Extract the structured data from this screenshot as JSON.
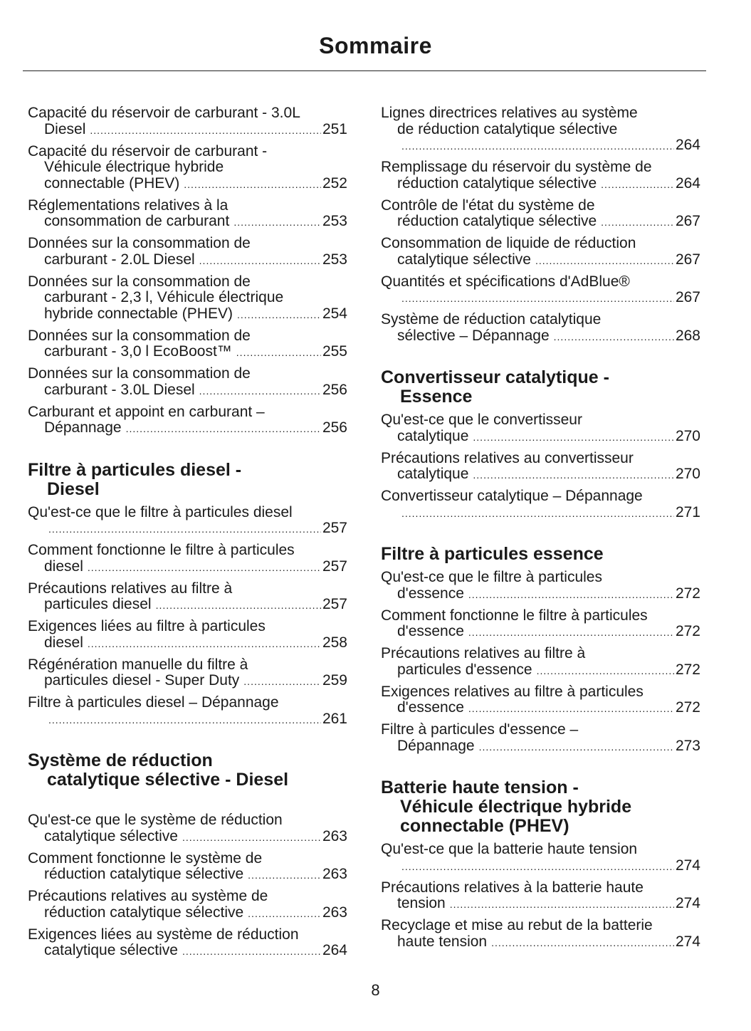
{
  "title": "Sommaire",
  "page_number": "8",
  "columns": [
    [
      {
        "type": "entry",
        "lines": [
          "Capacité du réservoir de carburant - 3.0L",
          "Diesel"
        ],
        "page": "251"
      },
      {
        "type": "entry",
        "lines": [
          "Capacité du réservoir de carburant -",
          "Véhicule électrique hybride",
          "connectable (PHEV)"
        ],
        "page": "252"
      },
      {
        "type": "entry",
        "lines": [
          "Réglementations relatives à la",
          "consommation de carburant"
        ],
        "page": "253"
      },
      {
        "type": "entry",
        "lines": [
          "Données sur la consommation de",
          "carburant - 2.0L Diesel"
        ],
        "page": "253"
      },
      {
        "type": "entry",
        "lines": [
          "Données sur la consommation de",
          "carburant - 2,3 l, Véhicule électrique",
          "hybride connectable (PHEV)"
        ],
        "page": "254"
      },
      {
        "type": "entry",
        "lines": [
          "Données sur la consommation de",
          "carburant - 3,0 l EcoBoost™"
        ],
        "page": "255"
      },
      {
        "type": "entry",
        "lines": [
          "Données sur la consommation de",
          "carburant - 3.0L Diesel"
        ],
        "page": "256"
      },
      {
        "type": "entry",
        "lines": [
          "Carburant et appoint en carburant –",
          "Dépannage"
        ],
        "page": "256"
      },
      {
        "type": "heading",
        "lines": [
          "Filtre à particules diesel -",
          "Diesel"
        ]
      },
      {
        "type": "entry",
        "lines": [
          "Qu'est-ce que le filtre à particules diesel",
          ""
        ],
        "page": "257"
      },
      {
        "type": "entry",
        "lines": [
          "Comment fonctionne le filtre à particules",
          "diesel"
        ],
        "page": "257"
      },
      {
        "type": "entry",
        "lines": [
          "Précautions relatives au filtre à",
          "particules diesel"
        ],
        "page": "257"
      },
      {
        "type": "entry",
        "lines": [
          "Exigences liées au filtre à particules",
          "diesel"
        ],
        "page": "258"
      },
      {
        "type": "entry",
        "lines": [
          "Régénération manuelle du filtre à",
          "particules diesel - Super Duty"
        ],
        "page": "259"
      },
      {
        "type": "entry",
        "lines": [
          "Filtre à particules diesel – Dépannage",
          ""
        ],
        "page": "261"
      },
      {
        "type": "heading",
        "big_after": true,
        "lines": [
          "Système de réduction",
          "catalytique sélective - Diesel"
        ]
      },
      {
        "type": "entry",
        "lines": [
          "Qu'est-ce que le système de réduction",
          "catalytique sélective"
        ],
        "page": "263"
      },
      {
        "type": "entry",
        "lines": [
          "Comment fonctionne le système de",
          "réduction catalytique sélective"
        ],
        "page": "263"
      },
      {
        "type": "entry",
        "lines": [
          "Précautions relatives au système de",
          "réduction catalytique sélective"
        ],
        "page": "263"
      },
      {
        "type": "entry",
        "lines": [
          "Exigences liées au système de réduction",
          "catalytique sélective"
        ],
        "page": "264"
      }
    ],
    [
      {
        "type": "entry",
        "lines": [
          "Lignes directrices relatives au système",
          "de réduction catalytique sélective",
          ""
        ],
        "page": "264"
      },
      {
        "type": "entry",
        "lines": [
          "Remplissage du réservoir du système de",
          "réduction catalytique sélective"
        ],
        "page": "264"
      },
      {
        "type": "entry",
        "lines": [
          "Contrôle de l'état du système de",
          "réduction catalytique sélective"
        ],
        "page": "267"
      },
      {
        "type": "entry",
        "lines": [
          "Consommation de liquide de réduction",
          "catalytique sélective"
        ],
        "page": "267"
      },
      {
        "type": "entry",
        "lines": [
          "Quantités et spécifications d'AdBlue®",
          ""
        ],
        "page": "267"
      },
      {
        "type": "entry",
        "lines": [
          "Système de réduction catalytique",
          "sélective – Dépannage"
        ],
        "page": "268"
      },
      {
        "type": "heading",
        "lines": [
          "Convertisseur catalytique -",
          "Essence"
        ]
      },
      {
        "type": "entry",
        "lines": [
          "Qu'est-ce que le convertisseur",
          "catalytique"
        ],
        "page": "270"
      },
      {
        "type": "entry",
        "lines": [
          "Précautions relatives au convertisseur",
          "catalytique"
        ],
        "page": "270"
      },
      {
        "type": "entry",
        "lines": [
          "Convertisseur catalytique – Dépannage",
          ""
        ],
        "page": "271"
      },
      {
        "type": "heading",
        "lines": [
          "Filtre à particules essence"
        ]
      },
      {
        "type": "entry",
        "lines": [
          "Qu'est-ce que le filtre à particules",
          "d'essence"
        ],
        "page": "272"
      },
      {
        "type": "entry",
        "lines": [
          "Comment fonctionne le filtre à particules",
          "d'essence"
        ],
        "page": "272"
      },
      {
        "type": "entry",
        "lines": [
          "Précautions relatives au filtre à",
          "particules d'essence"
        ],
        "page": "272"
      },
      {
        "type": "entry",
        "lines": [
          "Exigences relatives au filtre à particules",
          "d'essence"
        ],
        "page": "272"
      },
      {
        "type": "entry",
        "lines": [
          "Filtre à particules d'essence –",
          "Dépannage"
        ],
        "page": "273"
      },
      {
        "type": "heading",
        "lines": [
          "Batterie haute tension -",
          "Véhicule électrique hybride",
          "connectable (PHEV)"
        ]
      },
      {
        "type": "entry",
        "lines": [
          "Qu'est-ce que la batterie haute tension",
          ""
        ],
        "page": "274"
      },
      {
        "type": "entry",
        "lines": [
          "Précautions relatives à la batterie haute",
          "tension"
        ],
        "page": "274"
      },
      {
        "type": "entry",
        "lines": [
          "Recyclage et mise au rebut de la batterie",
          "haute tension"
        ],
        "page": "274"
      }
    ]
  ]
}
